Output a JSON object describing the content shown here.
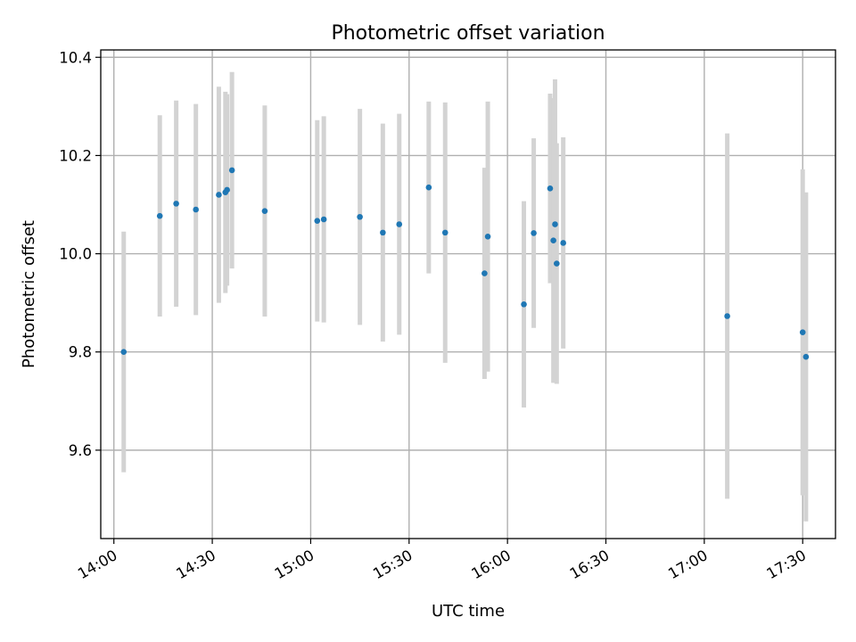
{
  "chart_data": {
    "type": "scatter",
    "title": "Photometric offset variation",
    "xlabel": "UTC time",
    "ylabel": "Photometric offset",
    "x_tick_labels": [
      "14:00",
      "14:30",
      "15:00",
      "15:30",
      "16:00",
      "16:30",
      "17:00",
      "17:30"
    ],
    "y_tick_labels": [
      "9.6",
      "9.8",
      "10.0",
      "10.2",
      "10.4"
    ],
    "y_ticks": [
      9.6,
      9.8,
      10.0,
      10.2,
      10.4
    ],
    "xlim": [
      "13:56",
      "17:40"
    ],
    "ylim": [
      9.42,
      10.415
    ],
    "grid": true,
    "marker_color": "#1f77b4",
    "errorbar_color": "#d3d3d3",
    "series": [
      {
        "points": [
          {
            "x": "14:03",
            "y": 9.8,
            "yerr": 0.245
          },
          {
            "x": "14:14",
            "y": 10.077,
            "yerr": 0.205
          },
          {
            "x": "14:19",
            "y": 10.102,
            "yerr": 0.21
          },
          {
            "x": "14:25",
            "y": 10.09,
            "yerr": 0.215
          },
          {
            "x": "14:32",
            "y": 10.12,
            "yerr": 0.22
          },
          {
            "x": "14:34",
            "y": 10.125,
            "yerr": 0.205
          },
          {
            "x": "14:34.5",
            "y": 10.13,
            "yerr": 0.195
          },
          {
            "x": "14:36",
            "y": 10.17,
            "yerr": 0.2
          },
          {
            "x": "14:46",
            "y": 10.087,
            "yerr": 0.215
          },
          {
            "x": "15:02",
            "y": 10.067,
            "yerr": 0.205
          },
          {
            "x": "15:04",
            "y": 10.07,
            "yerr": 0.21
          },
          {
            "x": "15:15",
            "y": 10.075,
            "yerr": 0.22
          },
          {
            "x": "15:22",
            "y": 10.043,
            "yerr": 0.222
          },
          {
            "x": "15:27",
            "y": 10.06,
            "yerr": 0.225
          },
          {
            "x": "15:36",
            "y": 10.135,
            "yerr": 0.175
          },
          {
            "x": "15:41",
            "y": 10.043,
            "yerr": 0.265
          },
          {
            "x": "15:53",
            "y": 9.96,
            "yerr": 0.215
          },
          {
            "x": "15:54",
            "y": 10.035,
            "yerr": 0.275
          },
          {
            "x": "16:05",
            "y": 9.897,
            "yerr": 0.21
          },
          {
            "x": "16:08",
            "y": 10.042,
            "yerr": 0.193
          },
          {
            "x": "16:13",
            "y": 10.133,
            "yerr": 0.193
          },
          {
            "x": "16:14",
            "y": 10.027,
            "yerr": 0.29
          },
          {
            "x": "16:14.5",
            "y": 10.06,
            "yerr": 0.295
          },
          {
            "x": "16:15",
            "y": 9.98,
            "yerr": 0.245
          },
          {
            "x": "16:17",
            "y": 10.022,
            "yerr": 0.215
          },
          {
            "x": "17:07",
            "y": 9.873,
            "yerr": 0.372
          },
          {
            "x": "17:30",
            "y": 9.84,
            "yerr": 0.332
          },
          {
            "x": "17:31",
            "y": 9.79,
            "yerr": 0.335
          }
        ]
      }
    ]
  }
}
